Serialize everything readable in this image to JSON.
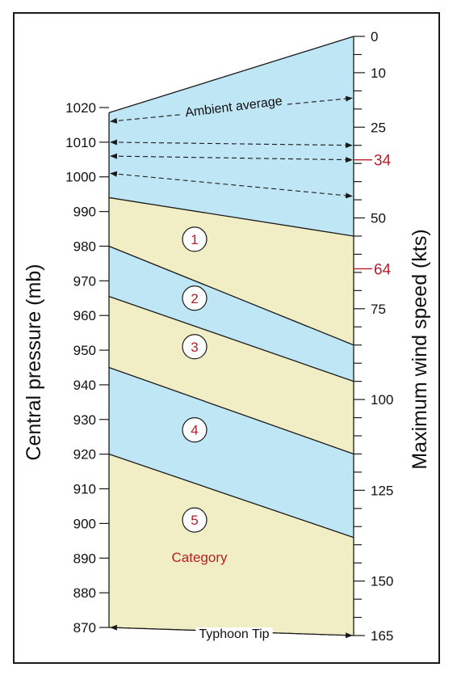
{
  "colors": {
    "blue_band": "#bfe6f4",
    "tan_band": "#f1eec5",
    "line": "#1a1a1a",
    "red": "#b5202b"
  },
  "left_axis": {
    "title": "Central pressure (mb)",
    "ticks": [
      "1020",
      "1010",
      "1000",
      "990",
      "980",
      "970",
      "960",
      "950",
      "940",
      "930",
      "920",
      "910",
      "900",
      "890",
      "880",
      "870"
    ],
    "min": 870,
    "max": 1020
  },
  "right_axis": {
    "title": "Maximum wind speed  (kts)",
    "labeled_ticks": [
      {
        "value": 0,
        "label": "0"
      },
      {
        "value": 10,
        "label": "10"
      },
      {
        "value": 25,
        "label": "25"
      },
      {
        "value": 50,
        "label": "50"
      },
      {
        "value": 75,
        "label": "75"
      },
      {
        "value": 100,
        "label": "100"
      },
      {
        "value": 125,
        "label": "125"
      },
      {
        "value": 150,
        "label": "150"
      },
      {
        "value": 165,
        "label": "165"
      }
    ],
    "red_ticks": [
      {
        "value": 34,
        "label": "34"
      },
      {
        "value": 64,
        "label": "64"
      }
    ],
    "minor_tick_step": 5,
    "min": 0,
    "max": 165
  },
  "boundaries": [
    {
      "name": "top",
      "pressure": 1018.5,
      "wind": 0
    },
    {
      "name": "cat1",
      "pressure": 994,
      "wind": 55
    },
    {
      "name": "cat2",
      "pressure": 980,
      "wind": 85
    },
    {
      "name": "cat3",
      "pressure": 965.5,
      "wind": 95
    },
    {
      "name": "cat4",
      "pressure": 945,
      "wind": 115
    },
    {
      "name": "cat5",
      "pressure": 920,
      "wind": 138
    },
    {
      "name": "bottom",
      "pressure": 870,
      "wind": 165
    }
  ],
  "band_colors": [
    "blue_band",
    "tan_band",
    "blue_band",
    "tan_band",
    "blue_band",
    "tan_band"
  ],
  "categories": [
    {
      "label": "1",
      "pressure": 982
    },
    {
      "label": "2",
      "pressure": 965
    },
    {
      "label": "3",
      "pressure": 951
    },
    {
      "label": "4",
      "pressure": 927
    },
    {
      "label": "5",
      "pressure": 901
    }
  ],
  "category_label": "Category",
  "annotations": {
    "ambient": "Ambient average",
    "tip": "Typhoon Tip"
  },
  "arrows": [
    {
      "from_pressure": 1016,
      "to_wind": 17
    },
    {
      "from_pressure": 1010,
      "to_wind": 30
    },
    {
      "from_pressure": 1006,
      "to_wind": 34
    },
    {
      "from_pressure": 1001,
      "to_wind": 44
    },
    {
      "from_pressure": 870,
      "to_wind": 165
    }
  ]
}
